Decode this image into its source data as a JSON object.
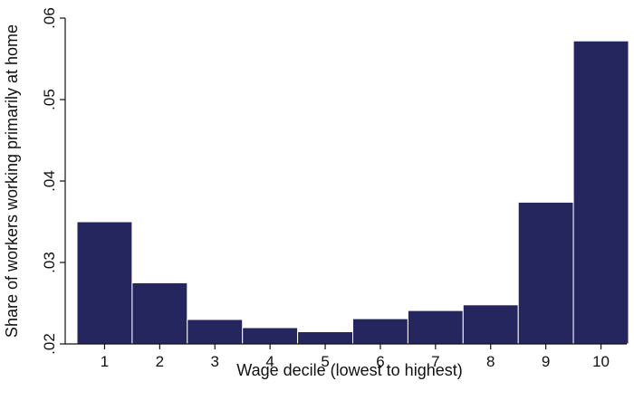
{
  "chart_data": {
    "type": "bar",
    "xlabel": "Wage decile (lowest to highest)",
    "ylabel": "Share of workers working primarily at home",
    "categories": [
      "1",
      "2",
      "3",
      "4",
      "5",
      "6",
      "7",
      "8",
      "9",
      "10"
    ],
    "values": [
      0.035,
      0.0275,
      0.023,
      0.022,
      0.0215,
      0.0231,
      0.0241,
      0.0248,
      0.0374,
      0.0572
    ],
    "ylim": [
      0.02,
      0.06
    ],
    "yticks": [
      {
        "value": 0.02,
        "label": ".02"
      },
      {
        "value": 0.03,
        "label": ".03"
      },
      {
        "value": 0.04,
        "label": ".04"
      },
      {
        "value": 0.05,
        "label": ".05"
      },
      {
        "value": 0.06,
        "label": ".06"
      }
    ],
    "bar_color": "#26265e",
    "grid": false,
    "legend": "none"
  }
}
